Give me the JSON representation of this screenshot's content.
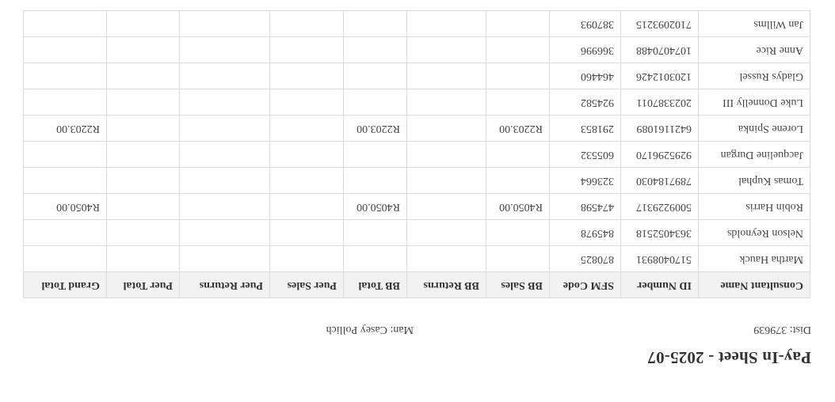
{
  "title": "Pay-In Sheet - 2025-07",
  "dist": "Dist: 379639",
  "man": "Man: Casey Pollich",
  "columns": [
    "Consultant Name",
    "ID Number",
    "SFM Code",
    "BB Sales",
    "BB Returns",
    "BB Total",
    "Puer Sales",
    "Puer Returns",
    "Puer Total",
    "Grand Total"
  ],
  "rows": [
    [
      "Martha Hauck",
      "5170408931",
      "870825",
      "",
      "",
      "",
      "",
      "",
      "",
      ""
    ],
    [
      "Nelson Reynolds",
      "3634052518",
      "845978",
      "",
      "",
      "",
      "",
      "",
      "",
      ""
    ],
    [
      "Robin Harris",
      "5009229317",
      "474598",
      "R4050.00",
      "",
      "R4050.00",
      "",
      "",
      "",
      "R4050.00"
    ],
    [
      "Tomas Kuphal",
      "7897184030",
      "323664",
      "",
      "",
      "",
      "",
      "",
      "",
      ""
    ],
    [
      "Jacqueline Durgan",
      "9295296170",
      "605532",
      "",
      "",
      "",
      "",
      "",
      "",
      ""
    ],
    [
      "Lorene Spinka",
      "6421161089",
      "291853",
      "R2203.00",
      "",
      "R2203.00",
      "",
      "",
      "",
      "R2203.00"
    ],
    [
      "Luke Donnelly III",
      "2023387011",
      "924582",
      "",
      "",
      "",
      "",
      "",
      "",
      ""
    ],
    [
      "Gladys Russel",
      "1203012426",
      "464460",
      "",
      "",
      "",
      "",
      "",
      "",
      ""
    ],
    [
      "Anne Rice",
      "1074070488",
      "366996",
      "",
      "",
      "",
      "",
      "",
      "",
      ""
    ],
    [
      "Jan Willms",
      "7102093215",
      "387093",
      "",
      "",
      "",
      "",
      "",
      "",
      ""
    ]
  ]
}
